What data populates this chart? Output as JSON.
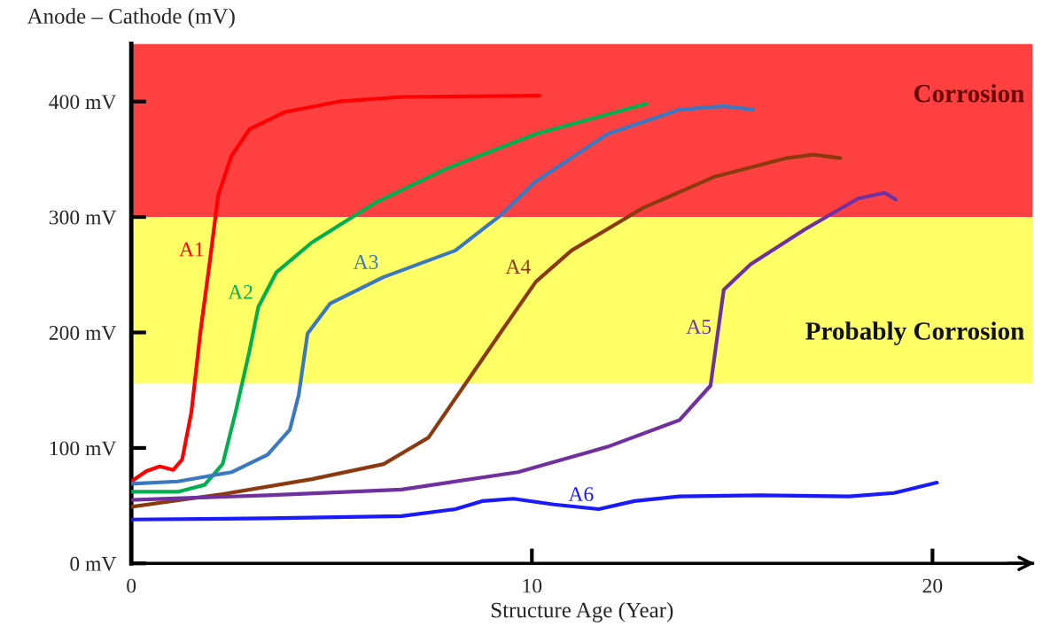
{
  "chart_data": {
    "type": "line",
    "xlabel": "Structure Age (Year)",
    "ylabel": "Anode – Cathode (mV)",
    "xlim": [
      0,
      22.5
    ],
    "xticks": [
      0,
      10,
      20
    ],
    "ylim": [
      0,
      450
    ],
    "yticks": [
      {
        "value": 0,
        "label": "0 mV"
      },
      {
        "value": 100,
        "label": "100 mV"
      },
      {
        "value": 200,
        "label": "200 mV"
      },
      {
        "value": 300,
        "label": "300 mV"
      },
      {
        "value": 400,
        "label": "400 mV"
      }
    ],
    "grid": false,
    "legend": false,
    "marker": "none",
    "line_style": "solid",
    "bands": [
      {
        "axis": "y",
        "from": 156,
        "to": 300,
        "label": "Probably Corrosion",
        "color": "#ffff66"
      },
      {
        "axis": "y",
        "from": 300,
        "to": 450,
        "label": "Corrosion",
        "color": "#ff4040"
      }
    ],
    "series": [
      {
        "name": "A1",
        "color": "#ff0000",
        "x": [
          0,
          0.38,
          0.71,
          1.05,
          1.27,
          1.5,
          1.72,
          1.95,
          2.17,
          2.5,
          2.95,
          3.84,
          5.18,
          6.75,
          10.19
        ],
        "values": [
          71,
          80,
          84,
          81,
          90,
          131,
          199,
          259,
          319,
          353,
          376,
          391,
          400,
          404,
          405
        ]
      },
      {
        "name": "A2",
        "color": "#00b050",
        "x": [
          0,
          1.16,
          1.83,
          2.28,
          2.61,
          2.95,
          3.17,
          3.62,
          4.51,
          6.07,
          7.87,
          10.1,
          12.85
        ],
        "values": [
          62,
          62,
          68,
          86,
          132,
          184,
          222,
          252,
          278,
          312,
          342,
          372,
          398
        ]
      },
      {
        "name": "A3",
        "color": "#3a78c0",
        "x": [
          0,
          1.16,
          2.5,
          3.4,
          3.96,
          4.18,
          4.4,
          4.96,
          6.3,
          8.09,
          9.2,
          10.1,
          11.89,
          13.68,
          14.79,
          15.53
        ],
        "values": [
          69,
          71,
          79,
          94,
          116,
          146,
          199,
          225,
          248,
          271,
          301,
          331,
          372,
          393,
          396,
          393
        ]
      },
      {
        "name": "A4",
        "color": "#8b3a0f",
        "x": [
          0,
          2.28,
          4.51,
          6.3,
          7.42,
          8.31,
          9.2,
          10.1,
          10.99,
          12.78,
          14.57,
          16.36,
          17.03,
          17.7
        ],
        "values": [
          49,
          60,
          73,
          86,
          109,
          154,
          199,
          244,
          271,
          308,
          335,
          351,
          354,
          351
        ]
      },
      {
        "name": "A5",
        "color": "#7030a0",
        "x": [
          0,
          3.4,
          6.75,
          9.65,
          11.89,
          13.68,
          14.46,
          14.61,
          14.79,
          15.46,
          16.8,
          18.14,
          18.81,
          19.08
        ],
        "values": [
          55,
          59,
          64,
          79,
          101,
          124,
          154,
          192,
          237,
          259,
          289,
          316,
          321,
          315
        ]
      },
      {
        "name": "A6",
        "color": "#1a1aff",
        "x": [
          0,
          3.4,
          6.75,
          8.09,
          8.76,
          9.54,
          10.55,
          11.67,
          12.56,
          13.68,
          15.69,
          17.92,
          19.04,
          20.11
        ],
        "values": [
          38,
          39,
          41,
          47,
          54,
          56,
          51,
          47,
          54,
          58,
          59,
          58,
          61,
          70
        ]
      }
    ]
  }
}
